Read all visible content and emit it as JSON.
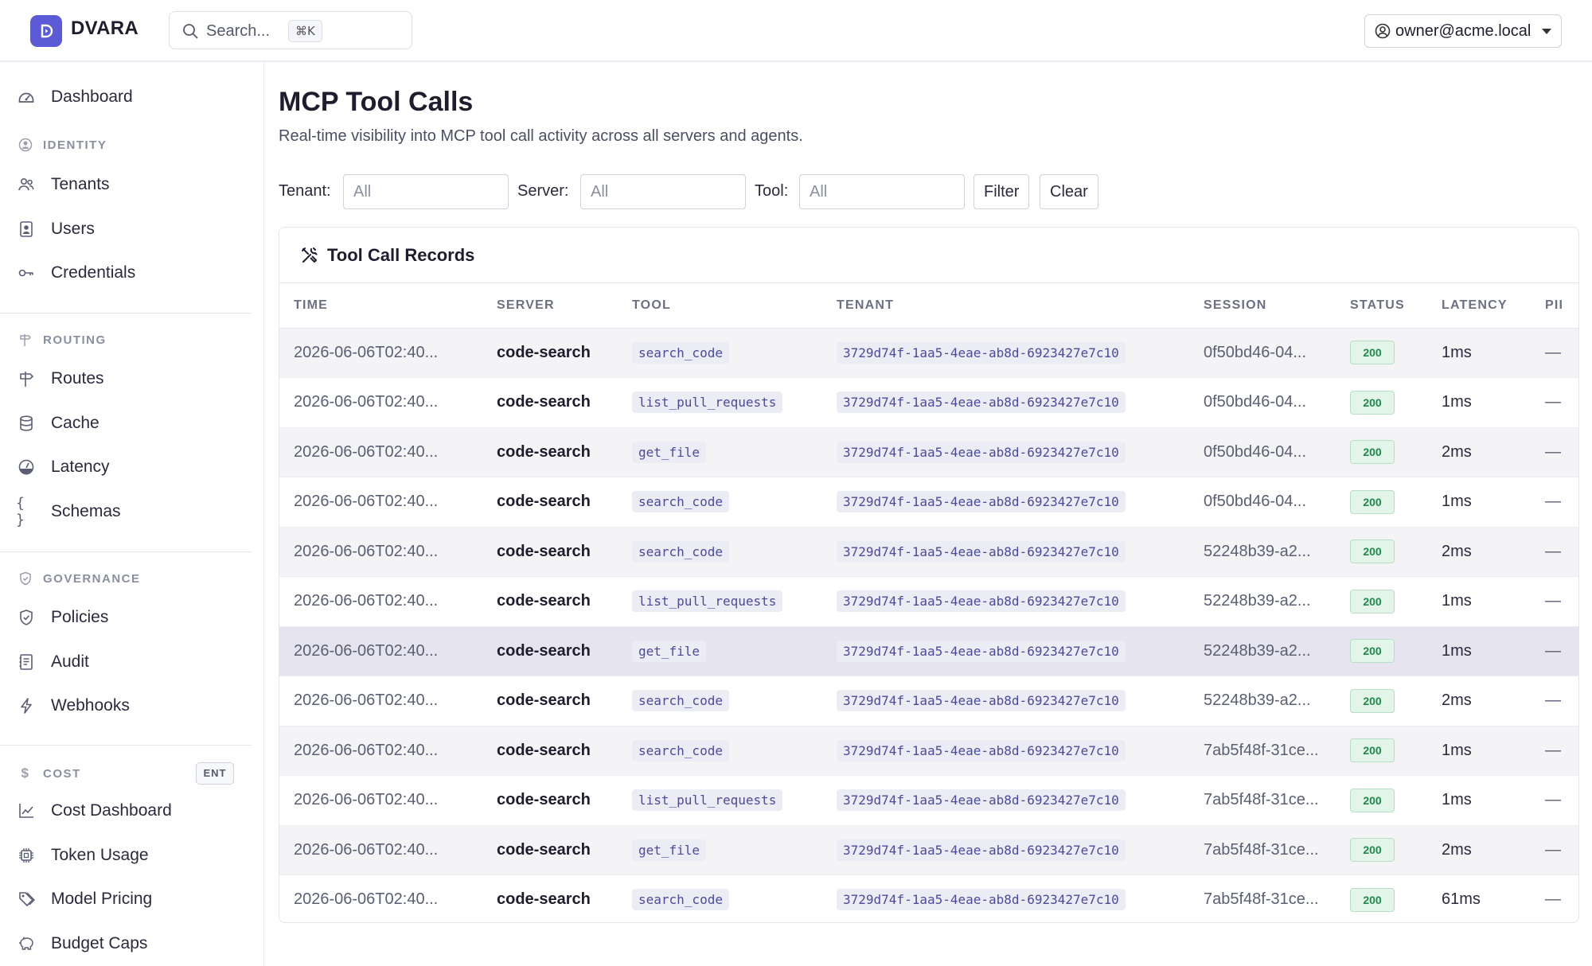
{
  "brand": {
    "name": "DVARA"
  },
  "search": {
    "placeholder": "Search...",
    "shortcut": "⌘K"
  },
  "user": {
    "email": "owner@acme.local"
  },
  "sidebar": {
    "dashboard": "Dashboard",
    "sections": [
      {
        "label": "IDENTITY",
        "items": [
          "Tenants",
          "Users",
          "Credentials"
        ]
      },
      {
        "label": "ROUTING",
        "items": [
          "Routes",
          "Cache",
          "Latency",
          "Schemas"
        ]
      },
      {
        "label": "GOVERNANCE",
        "items": [
          "Policies",
          "Audit",
          "Webhooks"
        ]
      },
      {
        "label": "COST",
        "badge": "ENT",
        "items": [
          "Cost Dashboard",
          "Token Usage",
          "Model Pricing",
          "Budget Caps"
        ]
      }
    ]
  },
  "page": {
    "title": "MCP Tool Calls",
    "subtitle": "Real-time visibility into MCP tool call activity across all servers and agents."
  },
  "filters": {
    "tenant_label": "Tenant:",
    "tenant_placeholder": "All",
    "server_label": "Server:",
    "server_placeholder": "All",
    "tool_label": "Tool:",
    "tool_placeholder": "All",
    "filter_button": "Filter",
    "clear_button": "Clear"
  },
  "records": {
    "title": "Tool Call Records",
    "columns": [
      "TIME",
      "SERVER",
      "TOOL",
      "TENANT",
      "SESSION",
      "STATUS",
      "LATENCY",
      "PII"
    ],
    "rows": [
      {
        "time": "2026-06-06T02:40...",
        "server": "code-search",
        "tool": "search_code",
        "tenant": "3729d74f-1aa5-4eae-ab8d-6923427e7c10",
        "session": "0f50bd46-04...",
        "status": "200",
        "latency": "1ms",
        "pii": "—"
      },
      {
        "time": "2026-06-06T02:40...",
        "server": "code-search",
        "tool": "list_pull_requests",
        "tenant": "3729d74f-1aa5-4eae-ab8d-6923427e7c10",
        "session": "0f50bd46-04...",
        "status": "200",
        "latency": "1ms",
        "pii": "—"
      },
      {
        "time": "2026-06-06T02:40...",
        "server": "code-search",
        "tool": "get_file",
        "tenant": "3729d74f-1aa5-4eae-ab8d-6923427e7c10",
        "session": "0f50bd46-04...",
        "status": "200",
        "latency": "2ms",
        "pii": "—"
      },
      {
        "time": "2026-06-06T02:40...",
        "server": "code-search",
        "tool": "search_code",
        "tenant": "3729d74f-1aa5-4eae-ab8d-6923427e7c10",
        "session": "0f50bd46-04...",
        "status": "200",
        "latency": "1ms",
        "pii": "—"
      },
      {
        "time": "2026-06-06T02:40...",
        "server": "code-search",
        "tool": "search_code",
        "tenant": "3729d74f-1aa5-4eae-ab8d-6923427e7c10",
        "session": "52248b39-a2...",
        "status": "200",
        "latency": "2ms",
        "pii": "—"
      },
      {
        "time": "2026-06-06T02:40...",
        "server": "code-search",
        "tool": "list_pull_requests",
        "tenant": "3729d74f-1aa5-4eae-ab8d-6923427e7c10",
        "session": "52248b39-a2...",
        "status": "200",
        "latency": "1ms",
        "pii": "—"
      },
      {
        "time": "2026-06-06T02:40...",
        "server": "code-search",
        "tool": "get_file",
        "tenant": "3729d74f-1aa5-4eae-ab8d-6923427e7c10",
        "session": "52248b39-a2...",
        "status": "200",
        "latency": "1ms",
        "pii": "—"
      },
      {
        "time": "2026-06-06T02:40...",
        "server": "code-search",
        "tool": "search_code",
        "tenant": "3729d74f-1aa5-4eae-ab8d-6923427e7c10",
        "session": "52248b39-a2...",
        "status": "200",
        "latency": "2ms",
        "pii": "—"
      },
      {
        "time": "2026-06-06T02:40...",
        "server": "code-search",
        "tool": "search_code",
        "tenant": "3729d74f-1aa5-4eae-ab8d-6923427e7c10",
        "session": "7ab5f48f-31ce...",
        "status": "200",
        "latency": "1ms",
        "pii": "—"
      },
      {
        "time": "2026-06-06T02:40...",
        "server": "code-search",
        "tool": "list_pull_requests",
        "tenant": "3729d74f-1aa5-4eae-ab8d-6923427e7c10",
        "session": "7ab5f48f-31ce...",
        "status": "200",
        "latency": "1ms",
        "pii": "—"
      },
      {
        "time": "2026-06-06T02:40...",
        "server": "code-search",
        "tool": "get_file",
        "tenant": "3729d74f-1aa5-4eae-ab8d-6923427e7c10",
        "session": "7ab5f48f-31ce...",
        "status": "200",
        "latency": "2ms",
        "pii": "—"
      },
      {
        "time": "2026-06-06T02:40...",
        "server": "code-search",
        "tool": "search_code",
        "tenant": "3729d74f-1aa5-4eae-ab8d-6923427e7c10",
        "session": "7ab5f48f-31ce...",
        "status": "200",
        "latency": "61ms",
        "pii": "—"
      }
    ]
  },
  "colors": {
    "accent": "#5b5bd6",
    "status_ok": "#1e8a4c"
  }
}
